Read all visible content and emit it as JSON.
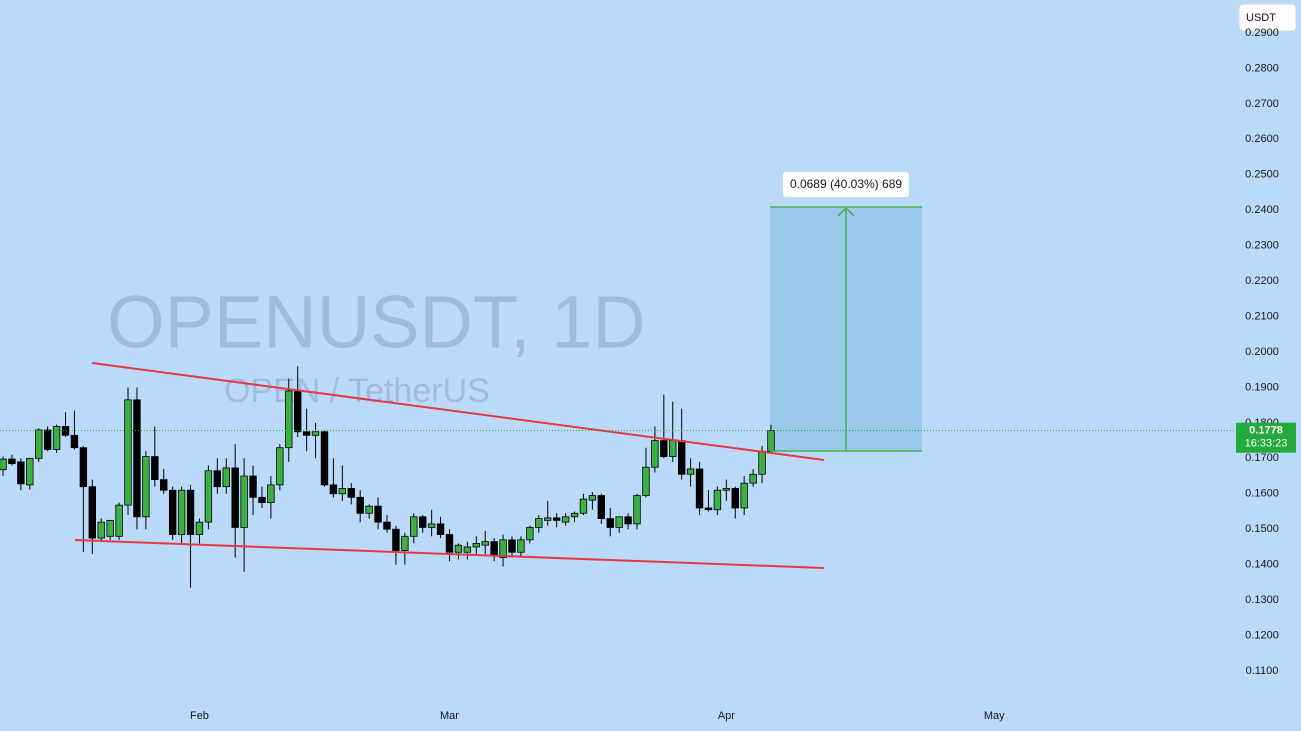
{
  "chart_data": {
    "type": "candlestick",
    "title": "OPENUSDT, 1D",
    "subtitle": "OPEN / TetherUS",
    "currency": "USDT",
    "categories": [
      null,
      null,
      null,
      null,
      null,
      null,
      null,
      null,
      null,
      null,
      null,
      null,
      null,
      null,
      null,
      null,
      null,
      null,
      null,
      null,
      null,
      null,
      "Feb",
      null,
      null,
      null,
      null,
      null,
      null,
      null,
      null,
      null,
      null,
      null,
      null,
      null,
      null,
      null,
      null,
      null,
      null,
      null,
      null,
      null,
      null,
      null,
      null,
      null,
      null,
      null,
      "Mar",
      null,
      null,
      null,
      null,
      null,
      null,
      null,
      null,
      null,
      null,
      null,
      null,
      null,
      null,
      null,
      null,
      null,
      null,
      null,
      null,
      null,
      null,
      null,
      null,
      null,
      null,
      null,
      null,
      null,
      null,
      "Apr",
      null,
      null,
      null,
      null,
      null,
      null,
      null,
      null,
      null,
      null,
      null,
      null,
      null,
      null,
      null,
      null,
      null,
      null,
      null,
      null,
      null,
      null,
      null,
      null,
      null,
      null,
      null,
      null,
      null,
      "May"
    ],
    "open": [
      0.1668,
      0.1698,
      0.169,
      0.1625,
      0.17,
      0.178,
      0.1725,
      0.179,
      0.1765,
      0.173,
      0.162,
      0.1475,
      0.148,
      0.148,
      0.1568,
      0.1865,
      0.1535,
      0.1705,
      0.164,
      0.161,
      0.1485,
      0.161,
      0.1485,
      0.152,
      0.1665,
      0.162,
      0.1673,
      0.1505,
      0.165,
      0.159,
      0.1575,
      0.1625,
      0.173,
      0.189,
      0.1775,
      0.1765,
      0.1775,
      0.1625,
      0.16,
      0.1615,
      0.159,
      0.1545,
      0.1565,
      0.152,
      0.15,
      0.144,
      0.148,
      0.1535,
      0.1505,
      0.1515,
      0.1485,
      0.1435,
      0.1435,
      0.145,
      0.1455,
      0.1465,
      0.142,
      0.147,
      0.1435,
      0.147,
      0.1505,
      0.1525,
      0.1532,
      0.152,
      0.1535,
      0.1545,
      0.1582,
      0.1595,
      0.153,
      0.1505,
      0.1535,
      0.1515,
      0.1595,
      0.1675,
      0.175,
      0.1705,
      0.175,
      0.1655,
      0.167,
      0.156,
      0.1555,
      0.161,
      0.1615,
      0.156,
      0.163,
      0.1655,
      0.172,
      null,
      null,
      null,
      null,
      null,
      null,
      null,
      null,
      null,
      null,
      null,
      null,
      null,
      null,
      null,
      null,
      null,
      null,
      null,
      null,
      null,
      null,
      null,
      null,
      null
    ],
    "high": [
      0.1705,
      0.171,
      0.17,
      0.17,
      0.1785,
      0.179,
      0.1795,
      0.183,
      0.1835,
      0.1735,
      0.164,
      0.153,
      0.1525,
      0.1575,
      0.19,
      0.19,
      0.172,
      0.179,
      0.167,
      0.162,
      0.162,
      0.1625,
      0.153,
      0.168,
      0.17,
      0.17,
      0.174,
      0.17,
      0.168,
      0.162,
      0.165,
      0.174,
      0.1925,
      0.196,
      0.184,
      0.18,
      0.178,
      0.17,
      0.168,
      0.163,
      0.161,
      0.157,
      0.159,
      0.154,
      0.151,
      0.149,
      0.1545,
      0.154,
      0.1555,
      0.1535,
      0.15,
      0.146,
      0.1465,
      0.148,
      0.1495,
      0.1475,
      0.1485,
      0.148,
      0.148,
      0.151,
      0.154,
      0.158,
      0.1545,
      0.1545,
      0.155,
      0.16,
      0.1605,
      0.16,
      0.156,
      0.1535,
      0.1545,
      0.16,
      0.173,
      0.179,
      0.188,
      0.186,
      0.184,
      0.17,
      0.169,
      0.161,
      0.162,
      0.164,
      0.162,
      0.165,
      0.167,
      0.1735,
      0.1795,
      null,
      null,
      null,
      null,
      null,
      null,
      null,
      null,
      null,
      null,
      null,
      null,
      null,
      null,
      null,
      null,
      null,
      null,
      null,
      null,
      null,
      null,
      null,
      null,
      null
    ],
    "low": [
      0.165,
      0.168,
      0.161,
      0.1612,
      0.169,
      0.172,
      0.1715,
      0.176,
      0.1725,
      0.1436,
      0.143,
      0.1465,
      0.147,
      0.147,
      0.154,
      0.15,
      0.15,
      0.162,
      0.16,
      0.147,
      0.146,
      0.1335,
      0.146,
      0.15,
      0.16,
      0.16,
      0.142,
      0.138,
      0.154,
      0.156,
      0.153,
      0.161,
      0.169,
      0.176,
      0.172,
      0.17,
      0.162,
      0.159,
      0.158,
      0.157,
      0.152,
      0.153,
      0.15,
      0.149,
      0.14,
      0.14,
      0.146,
      0.149,
      0.148,
      0.1475,
      0.141,
      0.1415,
      0.1415,
      0.143,
      0.143,
      0.141,
      0.1395,
      0.142,
      0.142,
      0.146,
      0.149,
      0.151,
      0.1505,
      0.151,
      0.152,
      0.154,
      0.1555,
      0.1515,
      0.148,
      0.149,
      0.15,
      0.15,
      0.159,
      0.166,
      0.17,
      0.169,
      0.164,
      0.162,
      0.154,
      0.155,
      0.154,
      0.158,
      0.153,
      0.154,
      0.162,
      0.163,
      0.1715,
      null,
      null,
      null,
      null,
      null,
      null,
      null,
      null,
      null,
      null,
      null,
      null,
      null,
      null,
      null,
      null,
      null,
      null,
      null,
      null,
      null,
      null,
      null,
      null,
      null
    ],
    "close": [
      0.1698,
      0.1685,
      0.1628,
      0.17,
      0.178,
      0.1725,
      0.179,
      0.1765,
      0.173,
      0.162,
      0.1475,
      0.152,
      0.1525,
      0.1568,
      0.1865,
      0.1535,
      0.1705,
      0.164,
      0.161,
      0.1485,
      0.161,
      0.1485,
      0.152,
      0.1665,
      0.162,
      0.1673,
      0.1505,
      0.165,
      0.159,
      0.1575,
      0.1625,
      0.173,
      0.189,
      0.1775,
      0.1765,
      0.1775,
      0.1625,
      0.16,
      0.1615,
      0.159,
      0.1545,
      0.1565,
      0.152,
      0.15,
      0.144,
      0.148,
      0.1535,
      0.1505,
      0.1515,
      0.1485,
      0.1435,
      0.1455,
      0.145,
      0.146,
      0.1465,
      0.1425,
      0.147,
      0.1435,
      0.147,
      0.1505,
      0.153,
      0.1532,
      0.1525,
      0.1535,
      0.1545,
      0.1585,
      0.1595,
      0.153,
      0.1505,
      0.1535,
      0.1515,
      0.1595,
      0.1675,
      0.175,
      0.1705,
      0.175,
      0.1655,
      0.167,
      0.156,
      0.1555,
      0.161,
      0.1615,
      0.156,
      0.163,
      0.1655,
      0.172,
      0.1778,
      null,
      null,
      null,
      null,
      null,
      null,
      null,
      null,
      null,
      null,
      null,
      null,
      null,
      null,
      null,
      null,
      null,
      null,
      null,
      null,
      null,
      null,
      null,
      null,
      null
    ],
    "up_color": "#3cb043",
    "down_color": "#000000",
    "ylim": [
      0.1,
      0.3
    ],
    "yticks": [
      {
        "value": 0.11,
        "label": "0.1100"
      },
      {
        "value": 0.12,
        "label": "0.1200"
      },
      {
        "value": 0.13,
        "label": "0.1300"
      },
      {
        "value": 0.14,
        "label": "0.1400"
      },
      {
        "value": 0.15,
        "label": "0.1500"
      },
      {
        "value": 0.16,
        "label": "0.1600"
      },
      {
        "value": 0.17,
        "label": "0.1700"
      },
      {
        "value": 0.18,
        "label": "0.1800"
      },
      {
        "value": 0.19,
        "label": "0.1900"
      },
      {
        "value": 0.2,
        "label": "0.2000"
      },
      {
        "value": 0.21,
        "label": "0.2100"
      },
      {
        "value": 0.22,
        "label": "0.2200"
      },
      {
        "value": 0.23,
        "label": "0.2300"
      },
      {
        "value": 0.24,
        "label": "0.2400"
      },
      {
        "value": 0.25,
        "label": "0.2500"
      },
      {
        "value": 0.26,
        "label": "0.2600"
      },
      {
        "value": 0.27,
        "label": "0.2700"
      },
      {
        "value": 0.28,
        "label": "0.2800"
      },
      {
        "value": 0.29,
        "label": "0.2900"
      }
    ],
    "last_price": 0.1778,
    "countdown": "16:33:23",
    "annotations": [
      "0.0689 (40.03%) 689"
    ]
  }
}
